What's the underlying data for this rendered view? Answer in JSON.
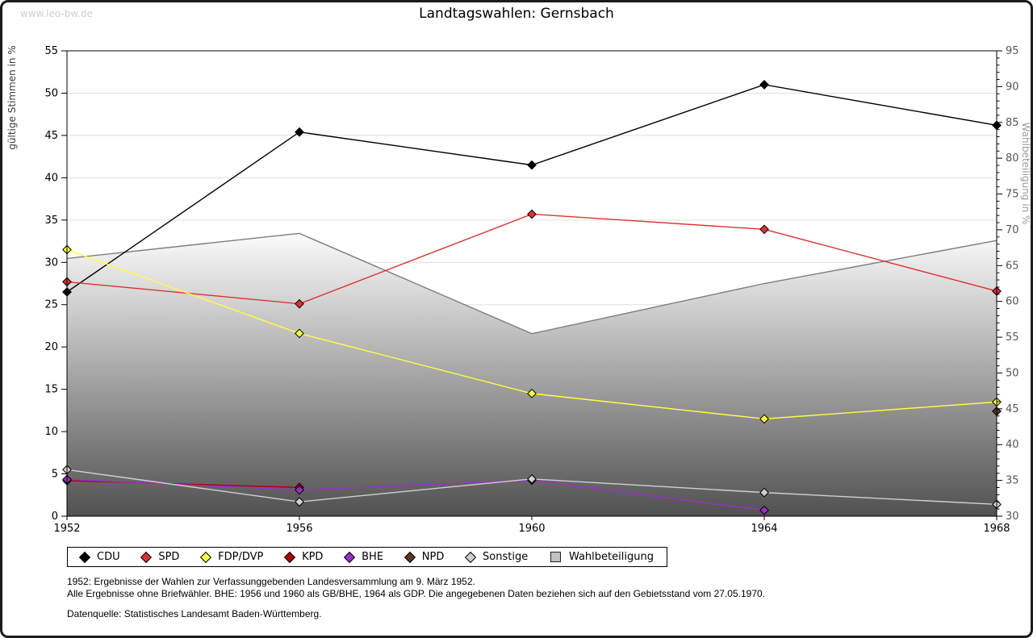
{
  "watermark": "www.leo-bw.de",
  "notes": {
    "line1": "1952: Ergebnisse der Wahlen zur Verfassunggebenden Landesversammlung am 9. März 1952.",
    "line2": "Alle Ergebnisse ohne Briefwähler. BHE: 1956 und 1960 als GB/BHE, 1964 als GDP. Die angegebenen Daten beziehen sich auf den Gebietsstand vom 27.05.1970.",
    "source": "Datenquelle: Statistisches Landesamt Baden-Württemberg."
  },
  "chart_data": {
    "type": "line",
    "title": "Landtagswahlen: Gernsbach",
    "x": [
      1952,
      1956,
      1960,
      1964,
      1968
    ],
    "left_axis": {
      "label": "gültige Stimmen in %",
      "min": 0,
      "max": 55,
      "tick_step": 5
    },
    "right_axis": {
      "label": "Wahlbeteiligung in %",
      "min": 30,
      "max": 95,
      "tick_step": 5,
      "minor_step": 1
    },
    "grid": {
      "horizontal": true,
      "color": "#e0e0e0"
    },
    "legend_position": "bottom",
    "series": [
      {
        "name": "CDU",
        "color": "#000000",
        "axis": "left",
        "x": [
          1952,
          1956,
          1960,
          1964,
          1968
        ],
        "values": [
          26.5,
          45.4,
          41.5,
          51.0,
          46.2
        ]
      },
      {
        "name": "SPD",
        "color": "#e03131",
        "axis": "left",
        "x": [
          1952,
          1956,
          1960,
          1964,
          1968
        ],
        "values": [
          27.7,
          25.1,
          35.7,
          33.9,
          26.6
        ]
      },
      {
        "name": "FDP/DVP",
        "color": "#ffff3d",
        "axis": "left",
        "x": [
          1952,
          1956,
          1960,
          1964,
          1968
        ],
        "values": [
          31.5,
          21.6,
          14.5,
          11.5,
          13.5
        ]
      },
      {
        "name": "KPD",
        "color": "#b00000",
        "axis": "left",
        "x": [
          1952,
          1956
        ],
        "values": [
          4.2,
          3.4
        ]
      },
      {
        "name": "BHE",
        "color": "#9b30c9",
        "axis": "left",
        "x": [
          1952,
          1956,
          1960,
          1964
        ],
        "values": [
          4.35,
          3.1,
          4.25,
          0.7
        ]
      },
      {
        "name": "NPD",
        "color": "#5a3a22",
        "axis": "left",
        "x": [
          1968
        ],
        "values": [
          12.4
        ]
      },
      {
        "name": "Sonstige",
        "color": "#d0d0d0",
        "axis": "left",
        "x": [
          1952,
          1956,
          1960,
          1964,
          1968
        ],
        "values": [
          5.5,
          1.7,
          4.4,
          2.8,
          1.4
        ]
      }
    ],
    "area_series": {
      "name": "Wahlbeteiligung",
      "axis": "right",
      "x": [
        1952,
        1956,
        1960,
        1964,
        1968
      ],
      "values": [
        66.0,
        69.5,
        55.5,
        62.5,
        68.5
      ],
      "line_color": "#7d7d7d",
      "fill_top": "#fbfbfb",
      "fill_bottom": "#515151"
    }
  }
}
